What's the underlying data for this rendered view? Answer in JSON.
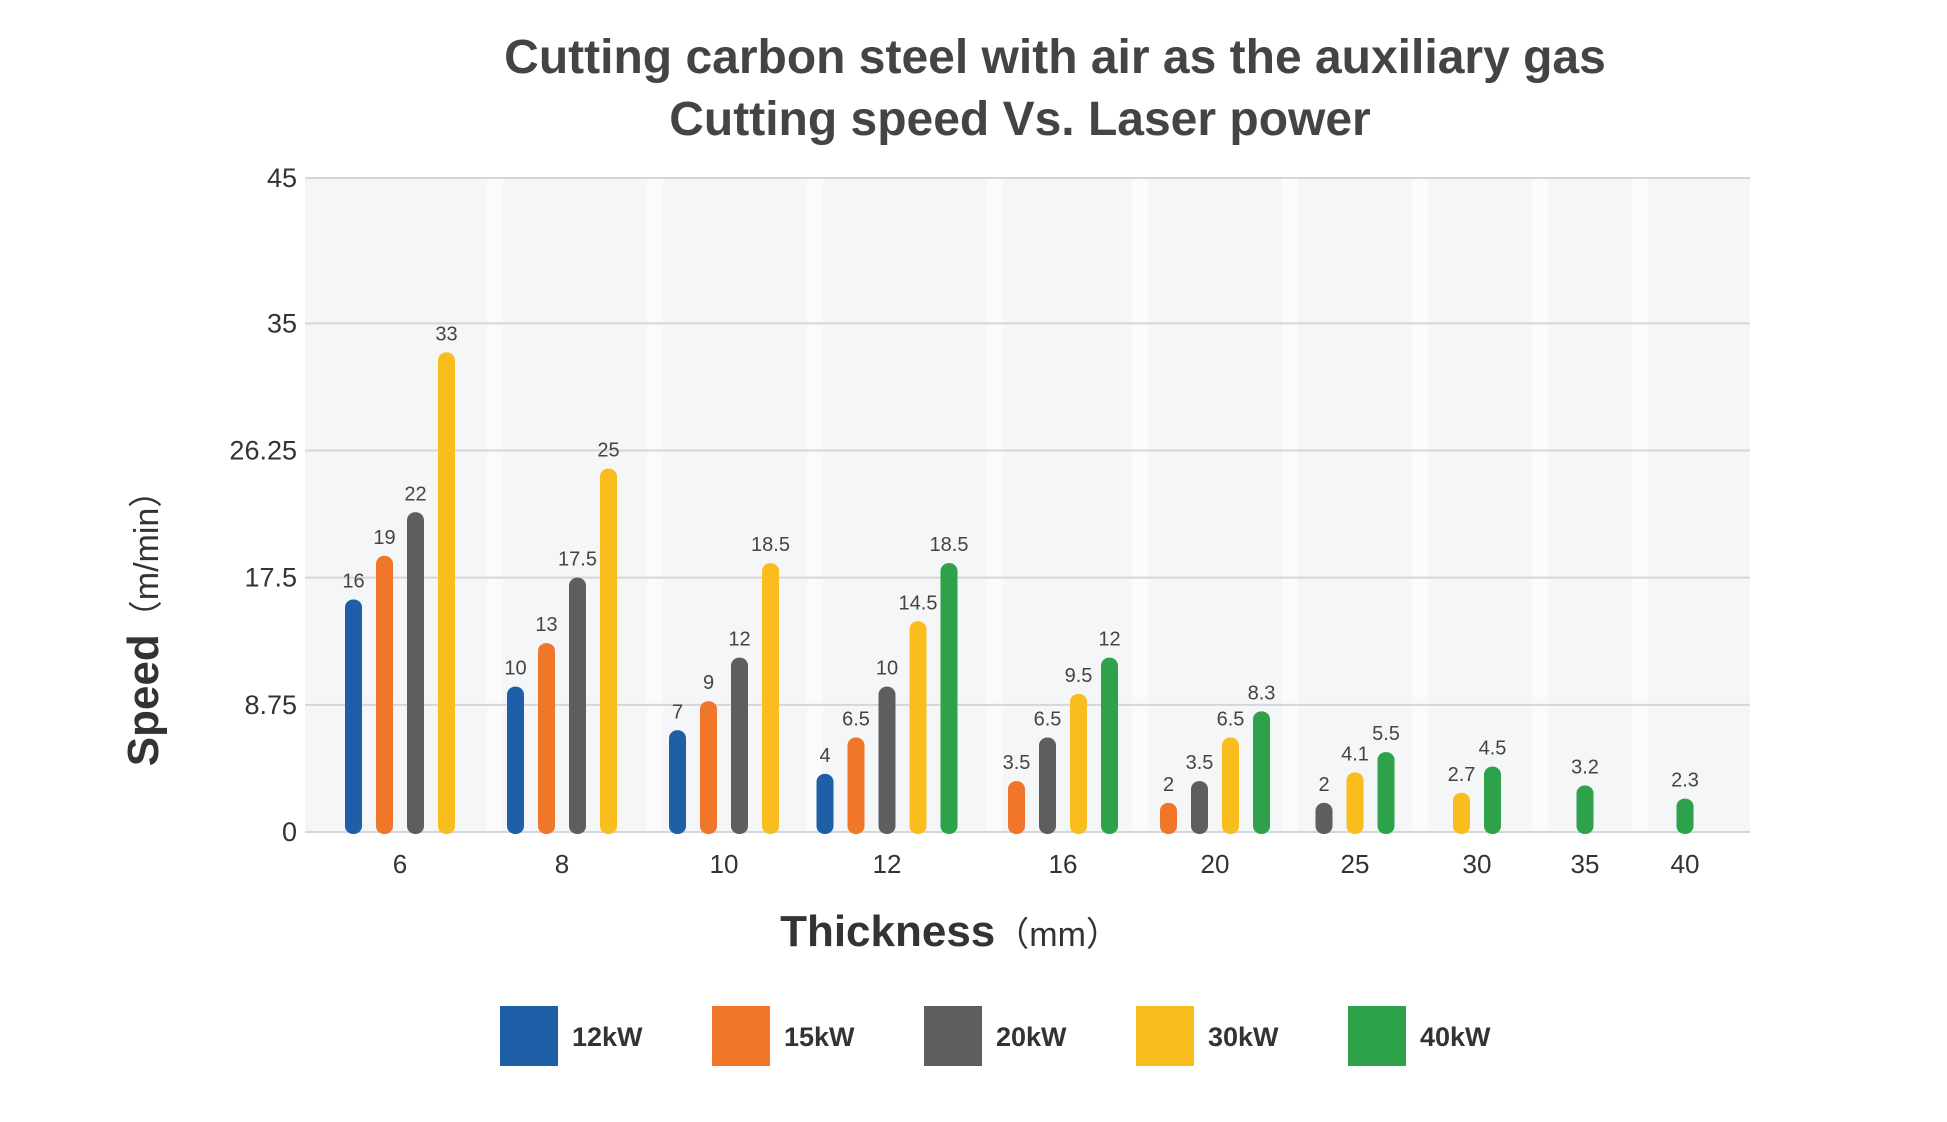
{
  "chart_data": {
    "type": "bar",
    "title": "Cutting carbon steel with air as the auxiliary gas",
    "subtitle": "Cutting speed Vs. Laser power",
    "xlabel": "Thickness",
    "xlabel_unit": "（mm）",
    "ylabel": "Speed",
    "ylabel_unit": "（m/min）",
    "ylim": [
      0,
      45
    ],
    "yticks": [
      "0",
      "8.75",
      "17.5",
      "26.25",
      "35",
      "45"
    ],
    "grid": "horizontal",
    "legend_position": "bottom",
    "categories": [
      "6",
      "8",
      "10",
      "12",
      "16",
      "20",
      "25",
      "30",
      "35",
      "40"
    ],
    "series": [
      {
        "name": "12kW",
        "color": "#1f5fa8",
        "values": [
          16,
          10,
          7,
          4,
          null,
          null,
          null,
          null,
          null,
          null
        ]
      },
      {
        "name": "15kW",
        "color": "#f0762a",
        "values": [
          19,
          13,
          9,
          6.5,
          3.5,
          2,
          null,
          null,
          null,
          null
        ]
      },
      {
        "name": "20kW",
        "color": "#5e5e5e",
        "values": [
          22,
          17.5,
          12,
          10,
          6.5,
          3.5,
          2,
          null,
          null,
          null
        ]
      },
      {
        "name": "30kW",
        "color": "#f9bd1e",
        "values": [
          33,
          25,
          18.5,
          14.5,
          9.5,
          6.5,
          4.1,
          2.7,
          null,
          null
        ]
      },
      {
        "name": "40kW",
        "color": "#2ea24a",
        "values": [
          null,
          null,
          null,
          18.5,
          12,
          8.3,
          5.5,
          4.5,
          3.2,
          2.3
        ]
      }
    ]
  }
}
